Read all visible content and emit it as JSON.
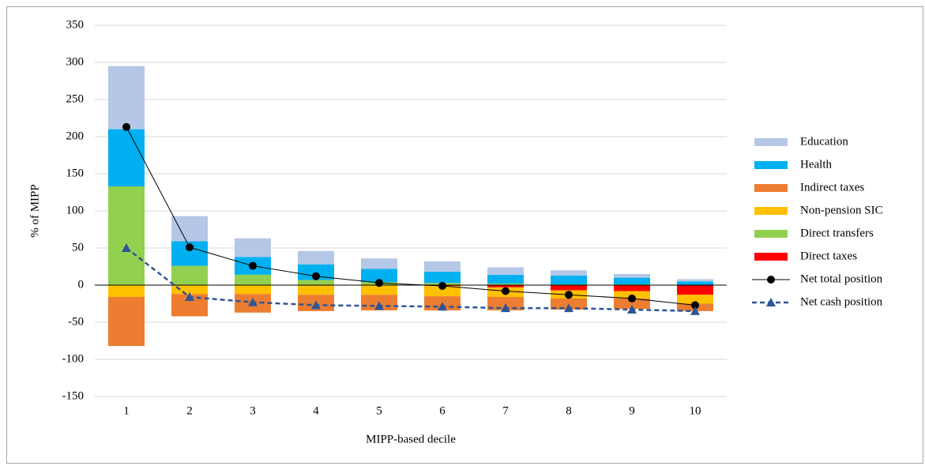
{
  "chart_data": {
    "type": "bar",
    "x_label": "MIPP-based decile",
    "y_label": "% of MIPP",
    "categories": [
      "1",
      "2",
      "3",
      "4",
      "5",
      "6",
      "7",
      "8",
      "9",
      "10"
    ],
    "ylim": [
      -150,
      350
    ],
    "yticks": [
      -150,
      -100,
      -50,
      0,
      50,
      100,
      150,
      200,
      250,
      300,
      350
    ],
    "grid": true,
    "stacked": true,
    "legend": "right",
    "series": [
      {
        "name": "Education",
        "type": "bar",
        "color": "#b4c7e7",
        "values": [
          85,
          34,
          25,
          18,
          14,
          14,
          10,
          7,
          5,
          3
        ]
      },
      {
        "name": "Health",
        "type": "bar",
        "color": "#00b0f0",
        "values": [
          77,
          33,
          24,
          21,
          18,
          15,
          12,
          12,
          9,
          5
        ]
      },
      {
        "name": "Indirect taxes",
        "type": "bar",
        "color": "#ed7d31",
        "values": [
          -66,
          -30,
          -25,
          -22,
          -21,
          -19,
          -18,
          -15,
          -14,
          -10
        ]
      },
      {
        "name": "Non-pension SIC",
        "type": "bar",
        "color": "#ffc000",
        "values": [
          -16,
          -12,
          -12,
          -13,
          -13,
          -14,
          -13,
          -11,
          -10,
          -12
        ]
      },
      {
        "name": "Direct transfers",
        "type": "bar",
        "color": "#92d050",
        "values": [
          133,
          26,
          14,
          7,
          4,
          3,
          2,
          1,
          1,
          0
        ]
      },
      {
        "name": "Direct taxes",
        "type": "bar",
        "color": "#ff0000",
        "values": [
          0,
          0,
          0,
          0,
          0,
          -1,
          -3,
          -7,
          -8,
          -13
        ]
      },
      {
        "name": "Net total position",
        "type": "line",
        "color": "#000000",
        "marker": "circle",
        "dashed": false,
        "values": [
          213,
          51,
          26,
          12,
          3,
          -1,
          -8,
          -13,
          -18,
          -27
        ]
      },
      {
        "name": "Net cash position",
        "type": "line",
        "color": "#2f5597",
        "marker": "triangle",
        "dashed": true,
        "values": [
          50,
          -16,
          -23,
          -27,
          -28,
          -29,
          -31,
          -31,
          -33,
          -35
        ]
      }
    ]
  }
}
